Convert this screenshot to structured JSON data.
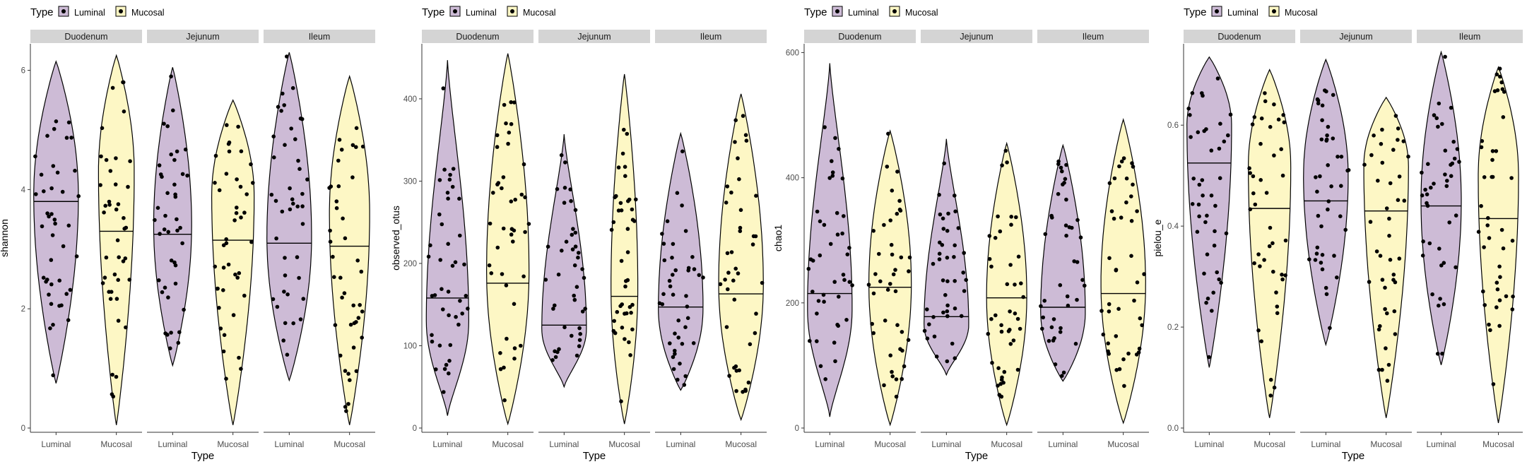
{
  "colors": {
    "luminal": "#cdbbd6",
    "mucosal": "#fdf7c5",
    "strip_bg": "#d4d4d4",
    "point": "#000000",
    "axis": "#333333"
  },
  "legend": {
    "title": "Type",
    "items": [
      "Luminal",
      "Mucosal"
    ]
  },
  "chart_data": [
    {
      "type": "violin",
      "ylabel": "shannon",
      "xlabel": "Type",
      "ylim": [
        0,
        6.35
      ],
      "yticks": [
        0,
        2,
        4,
        6
      ],
      "facets": [
        "Duodenum",
        "Jejunum",
        "Ileum"
      ],
      "categories": [
        "Luminal",
        "Mucosal"
      ],
      "groups": [
        {
          "facet": "Duodenum",
          "type": "Luminal",
          "min": 0.75,
          "max": 6.15,
          "median": 3.8,
          "mode": 3.9,
          "maxw": 1.0,
          "shape": "normal"
        },
        {
          "facet": "Duodenum",
          "type": "Mucosal",
          "min": 0.05,
          "max": 6.25,
          "median": 3.3,
          "mode": 4.3,
          "maxw": 0.8,
          "shape": "normal"
        },
        {
          "facet": "Jejunum",
          "type": "Luminal",
          "min": 1.05,
          "max": 6.05,
          "median": 3.25,
          "mode": 3.4,
          "maxw": 0.85,
          "shape": "normal"
        },
        {
          "facet": "Jejunum",
          "type": "Mucosal",
          "min": 0.05,
          "max": 5.5,
          "median": 3.15,
          "mode": 3.9,
          "maxw": 0.95,
          "shape": "normal"
        },
        {
          "facet": "Ileum",
          "type": "Luminal",
          "min": 0.8,
          "max": 6.3,
          "median": 3.1,
          "mode": 3.2,
          "maxw": 1.0,
          "shape": "normal"
        },
        {
          "facet": "Ileum",
          "type": "Mucosal",
          "min": 0.05,
          "max": 5.9,
          "median": 3.05,
          "mode": 3.6,
          "maxw": 0.9,
          "shape": "normal"
        }
      ]
    },
    {
      "type": "violin",
      "ylabel": "observed_otus",
      "xlabel": "Type",
      "ylim": [
        0,
        460
      ],
      "yticks": [
        0,
        100,
        200,
        300,
        400
      ],
      "facets": [
        "Duodenum",
        "Jejunum",
        "Ileum"
      ],
      "categories": [
        "Luminal",
        "Mucosal"
      ],
      "groups": [
        {
          "facet": "Duodenum",
          "type": "Luminal",
          "min": 15,
          "max": 447,
          "median": 158,
          "mode": 130,
          "maxw": 0.95,
          "shape": "skew"
        },
        {
          "facet": "Duodenum",
          "type": "Mucosal",
          "min": 5,
          "max": 455,
          "median": 176,
          "mode": 190,
          "maxw": 0.95,
          "shape": "normal"
        },
        {
          "facet": "Jejunum",
          "type": "Luminal",
          "min": 50,
          "max": 357,
          "median": 125,
          "mode": 120,
          "maxw": 1.0,
          "shape": "skew"
        },
        {
          "facet": "Jejunum",
          "type": "Mucosal",
          "min": 5,
          "max": 430,
          "median": 160,
          "mode": 170,
          "maxw": 0.6,
          "shape": "normal"
        },
        {
          "facet": "Ileum",
          "type": "Luminal",
          "min": 46,
          "max": 358,
          "median": 147,
          "mode": 145,
          "maxw": 1.0,
          "shape": "normal"
        },
        {
          "facet": "Ileum",
          "type": "Mucosal",
          "min": 10,
          "max": 406,
          "median": 163,
          "mode": 175,
          "maxw": 1.0,
          "shape": "normal"
        }
      ]
    },
    {
      "type": "violin",
      "ylabel": "chao1",
      "xlabel": "Type",
      "ylim": [
        0,
        605
      ],
      "yticks": [
        0,
        200,
        400,
        600
      ],
      "facets": [
        "Duodenum",
        "Jejunum",
        "Ileum"
      ],
      "categories": [
        "Luminal",
        "Mucosal"
      ],
      "groups": [
        {
          "facet": "Duodenum",
          "type": "Luminal",
          "min": 18,
          "max": 583,
          "median": 215,
          "mode": 190,
          "maxw": 1.0,
          "shape": "skew"
        },
        {
          "facet": "Duodenum",
          "type": "Mucosal",
          "min": 5,
          "max": 475,
          "median": 225,
          "mode": 230,
          "maxw": 0.95,
          "shape": "normal"
        },
        {
          "facet": "Jejunum",
          "type": "Luminal",
          "min": 85,
          "max": 462,
          "median": 178,
          "mode": 165,
          "maxw": 1.0,
          "shape": "skew"
        },
        {
          "facet": "Jejunum",
          "type": "Mucosal",
          "min": 5,
          "max": 455,
          "median": 208,
          "mode": 210,
          "maxw": 0.9,
          "shape": "normal"
        },
        {
          "facet": "Ileum",
          "type": "Luminal",
          "min": 75,
          "max": 452,
          "median": 193,
          "mode": 185,
          "maxw": 1.0,
          "shape": "normal"
        },
        {
          "facet": "Ileum",
          "type": "Mucosal",
          "min": 8,
          "max": 493,
          "median": 215,
          "mode": 230,
          "maxw": 1.0,
          "shape": "normal"
        }
      ]
    },
    {
      "type": "violin",
      "ylabel": "pielou_e",
      "xlabel": "Type",
      "ylim": [
        0,
        0.75
      ],
      "yticks": [
        0.0,
        0.2,
        0.4,
        0.6
      ],
      "ytick_labels": [
        "0.0",
        "0.2",
        "0.4",
        "0.6"
      ],
      "facets": [
        "Duodenum",
        "Jejunum",
        "Ileum"
      ],
      "categories": [
        "Luminal",
        "Mucosal"
      ],
      "groups": [
        {
          "facet": "Duodenum",
          "type": "Luminal",
          "min": 0.12,
          "max": 0.735,
          "median": 0.525,
          "mode": 0.6,
          "maxw": 1.0,
          "shape": "normal"
        },
        {
          "facet": "Duodenum",
          "type": "Mucosal",
          "min": 0.02,
          "max": 0.71,
          "median": 0.435,
          "mode": 0.52,
          "maxw": 0.95,
          "shape": "normal"
        },
        {
          "facet": "Jejunum",
          "type": "Luminal",
          "min": 0.165,
          "max": 0.73,
          "median": 0.45,
          "mode": 0.5,
          "maxw": 1.0,
          "shape": "normal"
        },
        {
          "facet": "Jejunum",
          "type": "Mucosal",
          "min": 0.02,
          "max": 0.655,
          "median": 0.43,
          "mode": 0.52,
          "maxw": 1.0,
          "shape": "normal"
        },
        {
          "facet": "Ileum",
          "type": "Luminal",
          "min": 0.125,
          "max": 0.745,
          "median": 0.44,
          "mode": 0.45,
          "maxw": 0.95,
          "shape": "normal"
        },
        {
          "facet": "Ileum",
          "type": "Mucosal",
          "min": 0.01,
          "max": 0.715,
          "median": 0.415,
          "mode": 0.5,
          "maxw": 0.95,
          "shape": "normal"
        }
      ]
    }
  ]
}
